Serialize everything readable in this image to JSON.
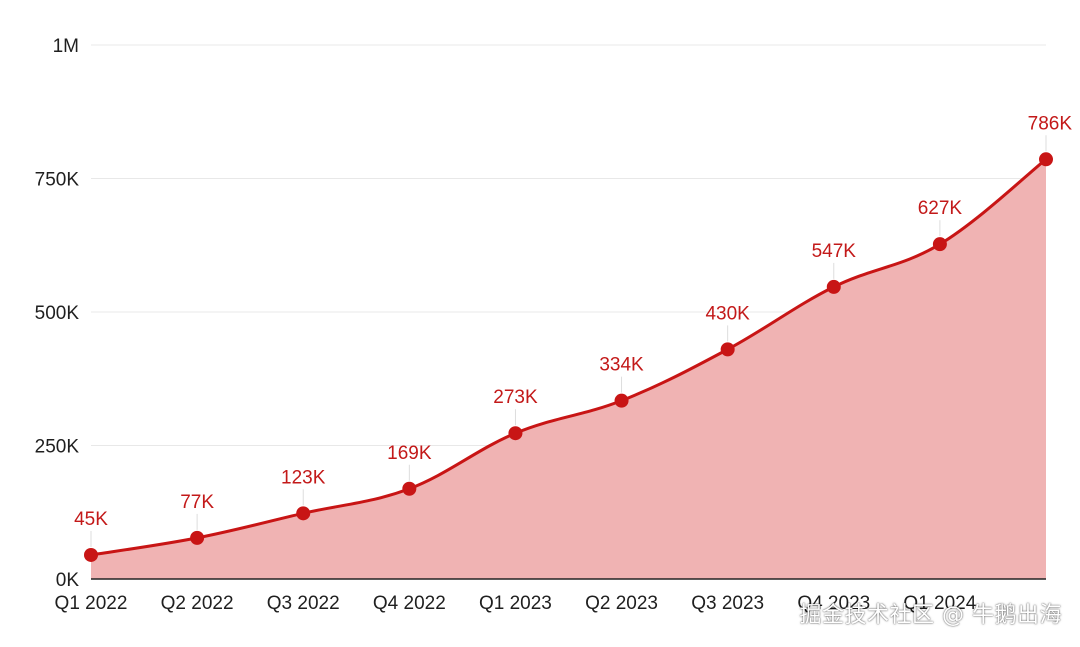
{
  "chart_data": {
    "type": "area",
    "categories": [
      "Q1 2022",
      "Q2 2022",
      "Q3 2022",
      "Q4 2022",
      "Q1 2023",
      "Q2 2023",
      "Q3 2023",
      "Q4 2023",
      "Q1 2024",
      ""
    ],
    "values": [
      45000,
      77000,
      123000,
      169000,
      273000,
      334000,
      430000,
      547000,
      627000,
      786000
    ],
    "data_labels": [
      "45K",
      "77K",
      "123K",
      "169K",
      "273K",
      "334K",
      "430K",
      "547K",
      "627K",
      "786K"
    ],
    "y_ticks": [
      0,
      250000,
      500000,
      750000,
      1000000
    ],
    "y_tick_labels": [
      "0K",
      "250K",
      "500K",
      "750K",
      "1M"
    ],
    "ylim": [
      0,
      1000000
    ],
    "grid": true,
    "colors": {
      "line": "#c81515",
      "fill": "#f0b3b3",
      "marker": "#c81515",
      "label": "#c31919",
      "grid": "#e8e8e8",
      "axis": "#222222"
    }
  },
  "watermark": "掘金技术社区 @ 牛鹅出海"
}
